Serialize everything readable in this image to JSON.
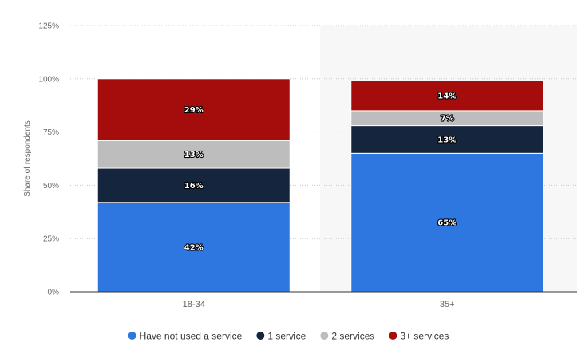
{
  "chart_data": {
    "type": "bar",
    "stacked": true,
    "categories": [
      "18-34",
      "35+"
    ],
    "series": [
      {
        "name": "Have not used a service",
        "color": "#2f77e0",
        "values": [
          42,
          65
        ]
      },
      {
        "name": "1 service",
        "color": "#14253d",
        "values": [
          16,
          13
        ]
      },
      {
        "name": "2 services",
        "color": "#bdbdbd",
        "values": [
          13,
          7
        ]
      },
      {
        "name": "3+ services",
        "color": "#a50d0d",
        "values": [
          29,
          14
        ]
      }
    ],
    "value_labels": [
      [
        "42%",
        "65%"
      ],
      [
        "16%",
        "13%"
      ],
      [
        "13%",
        "7%"
      ],
      [
        "29%",
        "14%"
      ]
    ],
    "ylabel": "Share of respondents",
    "ylim": [
      0,
      125
    ],
    "yticks": [
      0,
      25,
      50,
      75,
      100,
      125
    ],
    "ytick_labels": [
      "0%",
      "25%",
      "50%",
      "75%",
      "100%",
      "125%"
    ],
    "grid": true,
    "legend_position": "bottom"
  }
}
